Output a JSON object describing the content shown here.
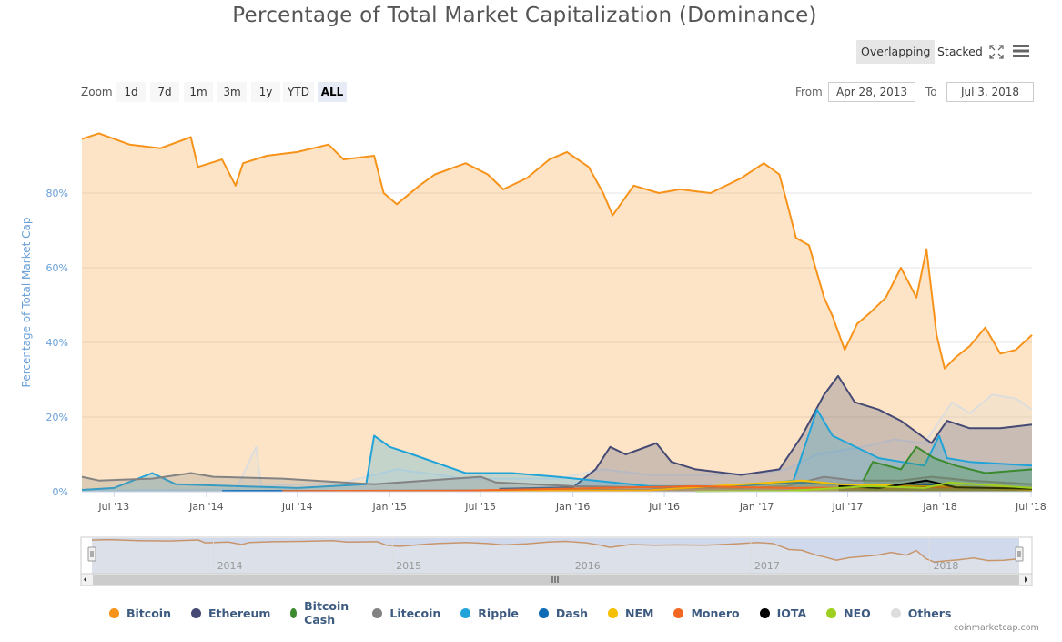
{
  "title": "Percentage of Total Market Capitalization (Dominance)",
  "toolbar": {
    "overlapping": "Overlapping",
    "stacked": "Stacked",
    "fullscreen_icon": "fullscreen-icon",
    "menu_icon": "hamburger-menu-icon"
  },
  "zoom": {
    "label": "Zoom",
    "buttons": [
      "1d",
      "7d",
      "1m",
      "3m",
      "1y",
      "YTD",
      "ALL"
    ],
    "active": "ALL"
  },
  "range": {
    "from_label": "From",
    "from": "Apr 28, 2013",
    "to_label": "To",
    "to": "Jul 3, 2018"
  },
  "credit": "coinmarketcap.com",
  "colors": {
    "Bitcoin": "#f7931a",
    "Ethereum": "#454a75",
    "Bitcoin Cash": "#3b8a2e",
    "Litecoin": "#838383",
    "Ripple": "#1fa3d8",
    "Dash": "#0d6cb5",
    "NEM": "#f5c000",
    "Monero": "#f26822",
    "IOTA": "#000000",
    "NEO": "#9ed11f",
    "Others": "#dddddd"
  },
  "chart_data": {
    "type": "area",
    "ylabel": "Percentage of Total Market Cap",
    "y_ticks": [
      "0%",
      "20%",
      "40%",
      "60%",
      "80%"
    ],
    "ylim": [
      0,
      100
    ],
    "x_range": [
      "2013-04-28",
      "2018-07-03"
    ],
    "x_ticks": [
      "Jul '13",
      "Jan '14",
      "Jul '14",
      "Jan '15",
      "Jul '15",
      "Jan '16",
      "Jul '16",
      "Jan '17",
      "Jul '17",
      "Jan '18",
      "Jul '18"
    ],
    "navigator_ticks": [
      "2014",
      "2015",
      "2016",
      "2017",
      "2018"
    ],
    "series": [
      {
        "name": "Bitcoin",
        "points": [
          [
            "2013-04-28",
            94.5
          ],
          [
            "2013-06-01",
            96
          ],
          [
            "2013-08-01",
            93
          ],
          [
            "2013-10-01",
            92
          ],
          [
            "2013-12-01",
            95
          ],
          [
            "2013-12-15",
            87
          ],
          [
            "2014-02-01",
            89
          ],
          [
            "2014-02-28",
            82
          ],
          [
            "2014-03-15",
            88
          ],
          [
            "2014-05-01",
            90
          ],
          [
            "2014-07-01",
            91
          ],
          [
            "2014-09-01",
            93
          ],
          [
            "2014-10-01",
            89
          ],
          [
            "2014-12-01",
            90
          ],
          [
            "2014-12-20",
            80
          ],
          [
            "2015-01-15",
            77
          ],
          [
            "2015-03-01",
            82
          ],
          [
            "2015-04-01",
            85
          ],
          [
            "2015-06-01",
            88
          ],
          [
            "2015-07-15",
            85
          ],
          [
            "2015-08-15",
            81
          ],
          [
            "2015-10-01",
            84
          ],
          [
            "2015-11-15",
            89
          ],
          [
            "2015-12-20",
            91
          ],
          [
            "2016-02-01",
            87
          ],
          [
            "2016-03-01",
            80
          ],
          [
            "2016-03-20",
            74
          ],
          [
            "2016-05-01",
            82
          ],
          [
            "2016-06-20",
            80
          ],
          [
            "2016-08-01",
            81
          ],
          [
            "2016-10-01",
            80
          ],
          [
            "2016-12-01",
            84
          ],
          [
            "2017-01-15",
            88
          ],
          [
            "2017-02-15",
            85
          ],
          [
            "2017-03-01",
            78
          ],
          [
            "2017-03-20",
            68
          ],
          [
            "2017-04-15",
            66
          ],
          [
            "2017-05-15",
            52
          ],
          [
            "2017-06-01",
            47
          ],
          [
            "2017-06-25",
            38
          ],
          [
            "2017-07-20",
            45
          ],
          [
            "2017-08-15",
            48
          ],
          [
            "2017-09-15",
            52
          ],
          [
            "2017-10-15",
            60
          ],
          [
            "2017-11-15",
            52
          ],
          [
            "2017-12-05",
            65
          ],
          [
            "2017-12-25",
            42
          ],
          [
            "2018-01-10",
            33
          ],
          [
            "2018-02-01",
            36
          ],
          [
            "2018-03-01",
            39
          ],
          [
            "2018-04-01",
            44
          ],
          [
            "2018-05-01",
            37
          ],
          [
            "2018-06-01",
            38
          ],
          [
            "2018-07-03",
            42
          ]
        ]
      },
      {
        "name": "Others",
        "points": [
          [
            "2013-04-28",
            0.3
          ],
          [
            "2014-03-01",
            0.6
          ],
          [
            "2014-04-10",
            12
          ],
          [
            "2014-04-20",
            1.5
          ],
          [
            "2014-10-01",
            2.5
          ],
          [
            "2015-01-15",
            6
          ],
          [
            "2015-06-01",
            3.5
          ],
          [
            "2015-12-01",
            3.5
          ],
          [
            "2016-03-01",
            6
          ],
          [
            "2016-06-01",
            4.5
          ],
          [
            "2016-09-01",
            4.5
          ],
          [
            "2017-01-01",
            4.8
          ],
          [
            "2017-03-01",
            6
          ],
          [
            "2017-05-01",
            10
          ],
          [
            "2017-06-15",
            11
          ],
          [
            "2017-08-01",
            12
          ],
          [
            "2017-10-01",
            14
          ],
          [
            "2017-12-01",
            13
          ],
          [
            "2018-01-05",
            20
          ],
          [
            "2018-01-25",
            24
          ],
          [
            "2018-03-01",
            21
          ],
          [
            "2018-04-15",
            26
          ],
          [
            "2018-06-01",
            25
          ],
          [
            "2018-07-03",
            22
          ]
        ]
      },
      {
        "name": "Ethereum",
        "points": [
          [
            "2015-08-07",
            0.8
          ],
          [
            "2016-01-01",
            1.2
          ],
          [
            "2016-02-15",
            6
          ],
          [
            "2016-03-15",
            12
          ],
          [
            "2016-04-15",
            10
          ],
          [
            "2016-06-15",
            13
          ],
          [
            "2016-07-15",
            8
          ],
          [
            "2016-09-01",
            6
          ],
          [
            "2016-12-01",
            4.5
          ],
          [
            "2017-02-15",
            6
          ],
          [
            "2017-04-01",
            15
          ],
          [
            "2017-05-15",
            26
          ],
          [
            "2017-06-12",
            31
          ],
          [
            "2017-07-15",
            24
          ],
          [
            "2017-09-01",
            22
          ],
          [
            "2017-10-15",
            19
          ],
          [
            "2017-12-15",
            13
          ],
          [
            "2018-01-15",
            19
          ],
          [
            "2018-03-01",
            17
          ],
          [
            "2018-05-01",
            17
          ],
          [
            "2018-07-03",
            18
          ]
        ]
      },
      {
        "name": "Ripple",
        "points": [
          [
            "2013-04-28",
            0.5
          ],
          [
            "2013-07-01",
            1
          ],
          [
            "2013-09-15",
            5
          ],
          [
            "2013-11-01",
            2
          ],
          [
            "2014-03-01",
            1.5
          ],
          [
            "2014-07-01",
            1
          ],
          [
            "2014-11-15",
            2
          ],
          [
            "2014-12-01",
            15
          ],
          [
            "2015-01-01",
            12
          ],
          [
            "2015-02-15",
            10
          ],
          [
            "2015-06-01",
            5
          ],
          [
            "2015-09-01",
            5
          ],
          [
            "2015-12-01",
            4
          ],
          [
            "2016-06-01",
            1.5
          ],
          [
            "2016-12-01",
            1.5
          ],
          [
            "2017-03-15",
            3
          ],
          [
            "2017-05-01",
            22
          ],
          [
            "2017-06-01",
            15
          ],
          [
            "2017-09-01",
            9
          ],
          [
            "2017-12-01",
            7
          ],
          [
            "2017-12-30",
            15
          ],
          [
            "2018-01-15",
            9
          ],
          [
            "2018-03-01",
            8
          ],
          [
            "2018-07-03",
            7
          ]
        ]
      },
      {
        "name": "Litecoin",
        "points": [
          [
            "2013-04-28",
            4
          ],
          [
            "2013-06-01",
            3
          ],
          [
            "2013-09-15",
            3.5
          ],
          [
            "2013-12-01",
            5
          ],
          [
            "2014-01-15",
            4
          ],
          [
            "2014-06-01",
            3.5
          ],
          [
            "2014-12-01",
            2
          ],
          [
            "2015-07-01",
            4
          ],
          [
            "2015-08-01",
            2.5
          ],
          [
            "2016-01-01",
            1.5
          ],
          [
            "2016-06-01",
            1.2
          ],
          [
            "2016-12-01",
            1
          ],
          [
            "2017-03-01",
            1.5
          ],
          [
            "2017-05-15",
            4
          ],
          [
            "2017-07-15",
            3
          ],
          [
            "2017-10-15",
            3
          ],
          [
            "2017-12-15",
            4
          ],
          [
            "2018-03-01",
            3
          ],
          [
            "2018-07-03",
            2
          ]
        ]
      },
      {
        "name": "Bitcoin Cash",
        "points": [
          [
            "2017-08-01",
            3
          ],
          [
            "2017-08-20",
            8
          ],
          [
            "2017-10-15",
            6
          ],
          [
            "2017-11-15",
            12
          ],
          [
            "2017-12-20",
            9
          ],
          [
            "2018-02-01",
            7
          ],
          [
            "2018-04-01",
            5
          ],
          [
            "2018-07-03",
            6
          ]
        ]
      },
      {
        "name": "Dash",
        "points": [
          [
            "2014-02-01",
            0.2
          ],
          [
            "2015-06-01",
            0.3
          ],
          [
            "2016-06-01",
            0.5
          ],
          [
            "2017-03-15",
            2.5
          ],
          [
            "2017-06-15",
            2
          ],
          [
            "2017-12-01",
            1.8
          ],
          [
            "2018-07-03",
            0.5
          ]
        ]
      },
      {
        "name": "NEM",
        "points": [
          [
            "2015-04-01",
            0.2
          ],
          [
            "2016-06-01",
            0.4
          ],
          [
            "2017-04-01",
            3
          ],
          [
            "2017-06-15",
            2
          ],
          [
            "2017-12-01",
            1.5
          ],
          [
            "2018-01-10",
            1.5
          ],
          [
            "2018-07-03",
            0.5
          ]
        ]
      },
      {
        "name": "Monero",
        "points": [
          [
            "2014-06-01",
            0.2
          ],
          [
            "2015-06-01",
            0.3
          ],
          [
            "2016-09-01",
            1.5
          ],
          [
            "2017-03-01",
            1
          ],
          [
            "2017-12-01",
            1.2
          ],
          [
            "2018-07-03",
            1
          ]
        ]
      },
      {
        "name": "IOTA",
        "points": [
          [
            "2017-06-13",
            1.5
          ],
          [
            "2017-09-01",
            1
          ],
          [
            "2017-12-05",
            3
          ],
          [
            "2018-02-01",
            1.2
          ],
          [
            "2018-07-03",
            0.8
          ]
        ]
      },
      {
        "name": "NEO",
        "points": [
          [
            "2016-09-01",
            0.05
          ],
          [
            "2017-03-01",
            0.2
          ],
          [
            "2017-08-15",
            1.5
          ],
          [
            "2017-12-01",
            1
          ],
          [
            "2018-01-20",
            2.5
          ],
          [
            "2018-07-03",
            1
          ]
        ]
      }
    ]
  }
}
